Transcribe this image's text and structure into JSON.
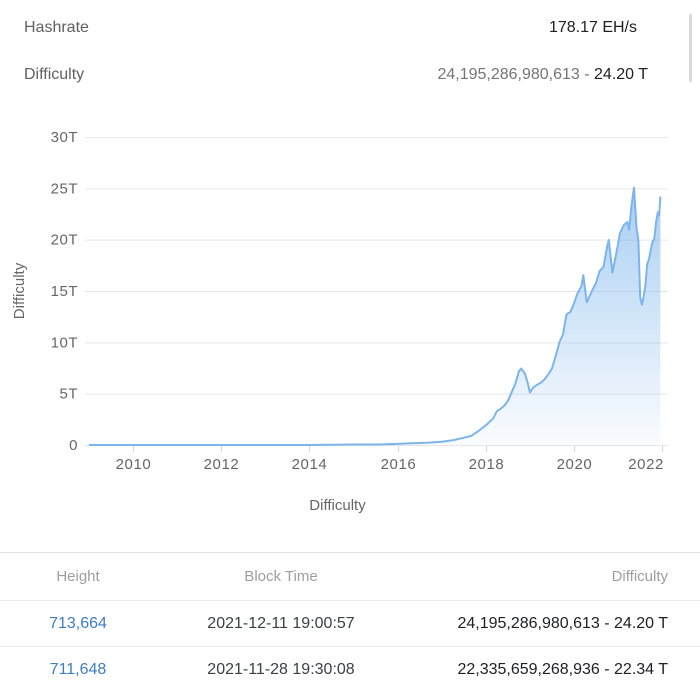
{
  "stats": {
    "hashrate_label": "Hashrate",
    "hashrate_value": "178.17 EH/s",
    "difficulty_label": "Difficulty",
    "difficulty_value_number": "24,195,286,980,613 - ",
    "difficulty_value_short": "24.20 T"
  },
  "chart_data": {
    "type": "area",
    "title": "",
    "xlabel": "",
    "ylabel": "Difficulty",
    "legend": "Difficulty",
    "legend_position": "bottom",
    "grid": true,
    "ylim": [
      0,
      30
    ],
    "xlim": [
      2008.9,
      2022.15
    ],
    "yticks": [
      0,
      5,
      10,
      15,
      20,
      25,
      30
    ],
    "ytick_labels": [
      "0",
      "5T",
      "10T",
      "15T",
      "20T",
      "25T",
      "30T"
    ],
    "xticks": [
      2010,
      2012,
      2014,
      2016,
      2018,
      2020,
      2022
    ],
    "xtick_labels": [
      "2010",
      "2012",
      "2014",
      "2016",
      "2018",
      "2020",
      "2022"
    ],
    "unit": "T (trillions of difficulty)",
    "series": [
      {
        "name": "Difficulty",
        "color": "#7cb5ec",
        "points": [
          [
            2009.0,
            0.0
          ],
          [
            2012.0,
            1.4e-06
          ],
          [
            2013.0,
            3e-06
          ],
          [
            2014.0,
            0.0014
          ],
          [
            2015.0,
            0.044
          ],
          [
            2015.5,
            0.047
          ],
          [
            2016.0,
            0.104
          ],
          [
            2016.33,
            0.17
          ],
          [
            2016.67,
            0.22
          ],
          [
            2017.0,
            0.32
          ],
          [
            2017.25,
            0.46
          ],
          [
            2017.5,
            0.71
          ],
          [
            2017.67,
            0.89
          ],
          [
            2017.83,
            1.35
          ],
          [
            2018.0,
            1.93
          ],
          [
            2018.08,
            2.23
          ],
          [
            2018.17,
            2.6
          ],
          [
            2018.25,
            3.29
          ],
          [
            2018.33,
            3.51
          ],
          [
            2018.42,
            3.84
          ],
          [
            2018.5,
            4.31
          ],
          [
            2018.58,
            5.08
          ],
          [
            2018.67,
            5.95
          ],
          [
            2018.75,
            7.18
          ],
          [
            2018.8,
            7.45
          ],
          [
            2018.88,
            7.0
          ],
          [
            2018.95,
            6.07
          ],
          [
            2019.0,
            5.11
          ],
          [
            2019.08,
            5.62
          ],
          [
            2019.17,
            5.88
          ],
          [
            2019.25,
            6.07
          ],
          [
            2019.33,
            6.39
          ],
          [
            2019.42,
            6.9
          ],
          [
            2019.5,
            7.46
          ],
          [
            2019.58,
            8.6
          ],
          [
            2019.67,
            9.99
          ],
          [
            2019.75,
            10.77
          ],
          [
            2019.83,
            12.72
          ],
          [
            2019.92,
            12.97
          ],
          [
            2020.0,
            13.8
          ],
          [
            2020.08,
            14.78
          ],
          [
            2020.17,
            15.49
          ],
          [
            2020.21,
            16.55
          ],
          [
            2020.29,
            13.91
          ],
          [
            2020.42,
            15.14
          ],
          [
            2020.5,
            15.78
          ],
          [
            2020.58,
            16.95
          ],
          [
            2020.67,
            17.35
          ],
          [
            2020.75,
            19.31
          ],
          [
            2020.79,
            19.97
          ],
          [
            2020.87,
            16.79
          ],
          [
            2020.96,
            18.67
          ],
          [
            2021.04,
            20.61
          ],
          [
            2021.13,
            21.43
          ],
          [
            2021.21,
            21.72
          ],
          [
            2021.25,
            20.95
          ],
          [
            2021.3,
            23.14
          ],
          [
            2021.36,
            25.05
          ],
          [
            2021.42,
            21.05
          ],
          [
            2021.46,
            19.93
          ],
          [
            2021.5,
            14.36
          ],
          [
            2021.54,
            13.67
          ],
          [
            2021.58,
            14.5
          ],
          [
            2021.62,
            15.56
          ],
          [
            2021.66,
            17.62
          ],
          [
            2021.7,
            18.1
          ],
          [
            2021.74,
            18.99
          ],
          [
            2021.78,
            19.79
          ],
          [
            2021.82,
            20.08
          ],
          [
            2021.86,
            21.66
          ],
          [
            2021.9,
            22.67
          ],
          [
            2021.93,
            22.34
          ],
          [
            2021.96,
            24.2
          ]
        ]
      }
    ]
  },
  "table": {
    "columns": [
      "Height",
      "Block Time",
      "Difficulty"
    ],
    "rows": [
      {
        "height": "713,664",
        "block_time": "2021-12-11 19:00:57",
        "difficulty": "24,195,286,980,613 - 24.20 T"
      },
      {
        "height": "711,648",
        "block_time": "2021-11-28 19:30:08",
        "difficulty": "22,335,659,268,936 - 22.34 T"
      }
    ]
  },
  "colors": {
    "series_line": "#7cb5ec",
    "area_fill_top": "rgba(124,181,236,0.78)",
    "area_fill_bottom": "rgba(124,181,236,0.04)",
    "grid_line": "#e6e6e6",
    "axis_tick": "#ccd6eb",
    "tick_text": "#666666",
    "link": "#3d7ec2"
  }
}
